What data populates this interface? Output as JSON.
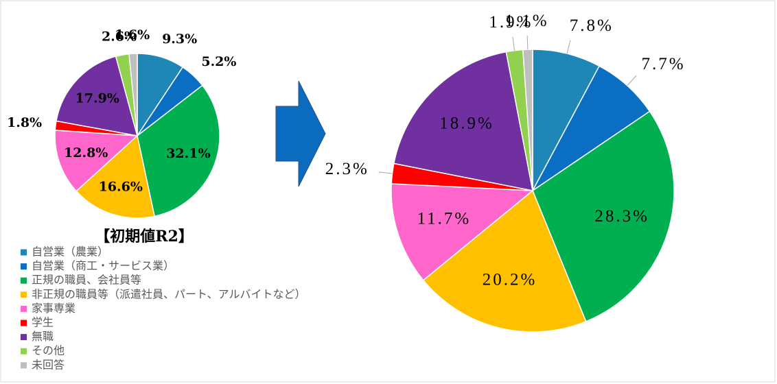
{
  "chart_data": [
    {
      "type": "pie",
      "title": "【初期値R2】",
      "categories": [
        "自営業（農業）",
        "自営業（商工・サービス業）",
        "正規の職員、会社員等",
        "非正規の職員等（派遣社員、パート、アルバイトなど）",
        "家事専業",
        "学生",
        "無職",
        "その他",
        "未回答"
      ],
      "colors": [
        "#1f87b8",
        "#0a6fc2",
        "#00b050",
        "#ffc000",
        "#ff66cc",
        "#ff0000",
        "#7030a0",
        "#92d050",
        "#bfbfbf"
      ],
      "values": [
        9.3,
        5.2,
        32.1,
        16.6,
        12.8,
        1.8,
        17.9,
        2.6,
        1.6
      ],
      "value_labels": [
        "9.3%",
        "5.2%",
        "32.1%",
        "16.6%",
        "12.8%",
        "1.8%",
        "17.9%",
        "2.6%",
        "1.6%"
      ]
    },
    {
      "type": "pie",
      "values": [
        7.8,
        7.7,
        28.3,
        20.2,
        11.7,
        2.3,
        18.9,
        1.9,
        1.1
      ],
      "value_labels": [
        "7.8%",
        "7.7%",
        "28.3%",
        "20.2%",
        "11.7%",
        "2.3%",
        "18.9%",
        "1.9%",
        "1.1%"
      ]
    }
  ]
}
